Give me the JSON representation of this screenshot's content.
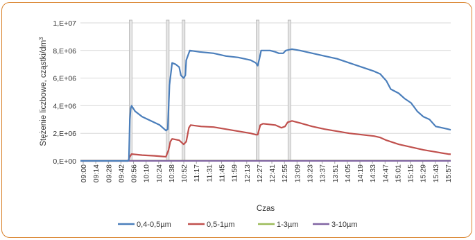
{
  "chart_data": {
    "type": "line",
    "xlabel": "Czas",
    "ylabel_main": "Stężenie liczbowe, cząstki/dm",
    "ylabel_sup": "3",
    "ylim": [
      0,
      10000000
    ],
    "y_ticks": [
      "0,E+00",
      "2,E+06",
      "4,E+06",
      "6,E+06",
      "8,E+06",
      "1,E+07"
    ],
    "y_tick_values": [
      0,
      2000000,
      4000000,
      6000000,
      8000000,
      10000000
    ],
    "x_range_minutes": [
      540,
      960
    ],
    "x_ticks": [
      "09:00",
      "09:14",
      "09:28",
      "09:42",
      "09:56",
      "10:10",
      "10:24",
      "10:38",
      "10:52",
      "11:17",
      "11:31",
      "11:45",
      "11:59",
      "12:13",
      "12:27",
      "12:41",
      "12:55",
      "13:09",
      "13:23",
      "13:37",
      "13:51",
      "14:05",
      "14:19",
      "14:33",
      "14:47",
      "15:01",
      "15:15",
      "15:29",
      "15:43",
      "15:57"
    ],
    "grid": true,
    "legend_position": "bottom",
    "marker_times": [
      "09:57",
      "10:39",
      "10:57",
      "12:21",
      "12:57"
    ],
    "series": [
      {
        "name": "0,4-0,5µm",
        "color": "#4a7ebb",
        "points": [
          [
            "09:00",
            0
          ],
          [
            "09:54",
            0
          ],
          [
            "09:55",
            100000
          ],
          [
            "09:56",
            3000000
          ],
          [
            "09:57",
            3800000
          ],
          [
            "09:58",
            4000000
          ],
          [
            "10:02",
            3600000
          ],
          [
            "10:10",
            3200000
          ],
          [
            "10:20",
            2900000
          ],
          [
            "10:30",
            2600000
          ],
          [
            "10:37",
            2200000
          ],
          [
            "10:39",
            2300000
          ],
          [
            "10:41",
            5500000
          ],
          [
            "10:43",
            6600000
          ],
          [
            "10:44",
            7100000
          ],
          [
            "10:48",
            7000000
          ],
          [
            "10:52",
            6800000
          ],
          [
            "10:54",
            6200000
          ],
          [
            "10:57",
            6000000
          ],
          [
            "10:59",
            6200000
          ],
          [
            "11:00",
            7300000
          ],
          [
            "11:04",
            8000000
          ],
          [
            "11:15",
            7900000
          ],
          [
            "11:31",
            7800000
          ],
          [
            "11:45",
            7600000
          ],
          [
            "11:59",
            7500000
          ],
          [
            "12:13",
            7300000
          ],
          [
            "12:19",
            7100000
          ],
          [
            "12:21",
            6900000
          ],
          [
            "12:23",
            7400000
          ],
          [
            "12:25",
            8000000
          ],
          [
            "12:35",
            8000000
          ],
          [
            "12:41",
            7900000
          ],
          [
            "12:45",
            7800000
          ],
          [
            "12:50",
            7800000
          ],
          [
            "12:53",
            8000000
          ],
          [
            "13:00",
            8100000
          ],
          [
            "13:09",
            8000000
          ],
          [
            "13:23",
            7800000
          ],
          [
            "13:37",
            7600000
          ],
          [
            "13:51",
            7400000
          ],
          [
            "14:05",
            7100000
          ],
          [
            "14:19",
            6800000
          ],
          [
            "14:33",
            6500000
          ],
          [
            "14:40",
            6300000
          ],
          [
            "14:47",
            5800000
          ],
          [
            "14:52",
            5200000
          ],
          [
            "15:01",
            4900000
          ],
          [
            "15:08",
            4500000
          ],
          [
            "15:15",
            4200000
          ],
          [
            "15:22",
            3600000
          ],
          [
            "15:29",
            3200000
          ],
          [
            "15:36",
            3000000
          ],
          [
            "15:43",
            2500000
          ],
          [
            "15:50",
            2400000
          ],
          [
            "15:57",
            2300000
          ],
          [
            "16:00",
            2250000
          ]
        ]
      },
      {
        "name": "0,5-1µm",
        "color": "#c0504d",
        "points": [
          [
            "09:00",
            0
          ],
          [
            "09:54",
            0
          ],
          [
            "09:56",
            300000
          ],
          [
            "09:58",
            500000
          ],
          [
            "10:10",
            420000
          ],
          [
            "10:24",
            370000
          ],
          [
            "10:37",
            300000
          ],
          [
            "10:40",
            800000
          ],
          [
            "10:42",
            1400000
          ],
          [
            "10:44",
            1600000
          ],
          [
            "10:52",
            1500000
          ],
          [
            "10:57",
            1200000
          ],
          [
            "11:00",
            1400000
          ],
          [
            "11:03",
            2400000
          ],
          [
            "11:05",
            2600000
          ],
          [
            "11:17",
            2500000
          ],
          [
            "11:31",
            2450000
          ],
          [
            "11:45",
            2300000
          ],
          [
            "11:59",
            2150000
          ],
          [
            "12:13",
            2000000
          ],
          [
            "12:19",
            1900000
          ],
          [
            "12:21",
            1900000
          ],
          [
            "12:24",
            2600000
          ],
          [
            "12:27",
            2700000
          ],
          [
            "12:41",
            2600000
          ],
          [
            "12:48",
            2400000
          ],
          [
            "12:52",
            2500000
          ],
          [
            "12:55",
            2800000
          ],
          [
            "13:00",
            2900000
          ],
          [
            "13:09",
            2750000
          ],
          [
            "13:23",
            2500000
          ],
          [
            "13:37",
            2300000
          ],
          [
            "13:51",
            2150000
          ],
          [
            "14:05",
            2000000
          ],
          [
            "14:19",
            1900000
          ],
          [
            "14:33",
            1800000
          ],
          [
            "14:40",
            1700000
          ],
          [
            "14:47",
            1500000
          ],
          [
            "15:01",
            1200000
          ],
          [
            "15:15",
            1000000
          ],
          [
            "15:29",
            800000
          ],
          [
            "15:43",
            650000
          ],
          [
            "15:57",
            500000
          ],
          [
            "16:00",
            480000
          ]
        ]
      },
      {
        "name": "1-3µm",
        "color": "#9bbb59",
        "points": [
          [
            "09:00",
            20000
          ],
          [
            "16:00",
            20000
          ]
        ]
      },
      {
        "name": "3-10µm",
        "color": "#8064a2",
        "points": [
          [
            "09:00",
            5000
          ],
          [
            "16:00",
            5000
          ]
        ]
      }
    ]
  }
}
